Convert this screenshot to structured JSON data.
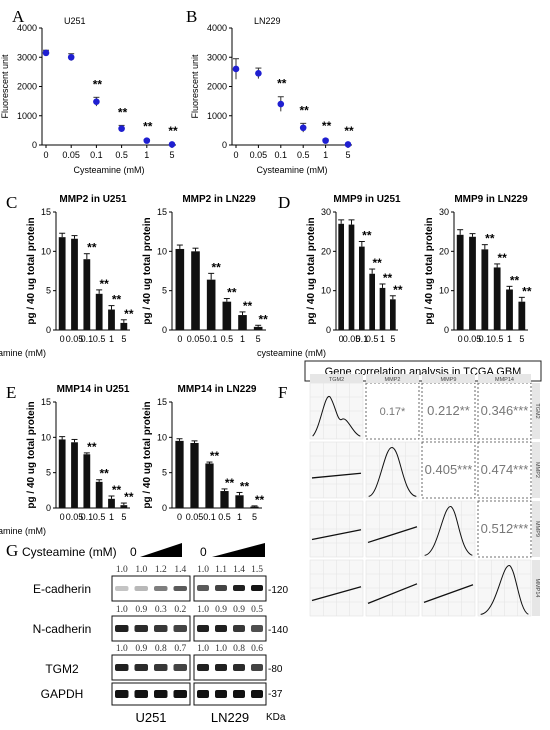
{
  "panel_labels": {
    "A": "A",
    "B": "B",
    "C": "C",
    "D": "D",
    "E": "E",
    "F": "F",
    "G": "G"
  },
  "chart_data": [
    {
      "id": "A",
      "type": "scatter",
      "title": "U251",
      "xlabel": "Cysteamine (mM)",
      "ylabel": "Fluorescent unit",
      "categories": [
        "0",
        "0.05",
        "0.1",
        "0.5",
        "1",
        "5"
      ],
      "values": [
        3150,
        3000,
        1480,
        560,
        150,
        20
      ],
      "errors": [
        90,
        120,
        150,
        110,
        40,
        20
      ],
      "sig": [
        "",
        "",
        "**",
        "**",
        "**",
        "**"
      ],
      "ylim": [
        0,
        4000
      ],
      "yticks": [
        "0",
        "1000",
        "2000",
        "3000",
        "4000"
      ]
    },
    {
      "id": "B",
      "type": "scatter",
      "title": "LN229",
      "xlabel": "Cysteamine (mM)",
      "ylabel": "Fluorescent unit",
      "categories": [
        "0",
        "0.05",
        "0.1",
        "0.5",
        "1",
        "5"
      ],
      "values": [
        2600,
        2450,
        1400,
        590,
        150,
        20
      ],
      "errors": [
        350,
        180,
        250,
        150,
        50,
        20
      ],
      "sig": [
        "",
        "",
        "**",
        "**",
        "**",
        "**"
      ],
      "ylim": [
        0,
        4000
      ],
      "yticks": [
        "0",
        "1000",
        "2000",
        "3000",
        "4000"
      ]
    },
    {
      "id": "C1",
      "type": "bar",
      "title": "MMP2 in U251",
      "ylabel": "pg / 40 ug total protein",
      "xlabel": "cysteamine (mM)",
      "categories": [
        "0",
        "0.05",
        "0.1",
        "0.5",
        "1",
        "5"
      ],
      "values": [
        11.8,
        11.6,
        9.0,
        4.6,
        2.6,
        0.9
      ],
      "errors": [
        0.5,
        0.4,
        0.7,
        0.5,
        0.5,
        0.4
      ],
      "sig": [
        "",
        "",
        "**",
        "**",
        "**",
        "**"
      ],
      "ylim": [
        0,
        15
      ],
      "yticks": [
        "0",
        "5",
        "10",
        "15"
      ]
    },
    {
      "id": "C2",
      "type": "bar",
      "title": "MMP2 in LN229",
      "ylabel": "pg / 40 ug total protein",
      "categories": [
        "0",
        "0.05",
        "0.1",
        "0.5",
        "1",
        "5"
      ],
      "values": [
        10.3,
        10.0,
        6.4,
        3.6,
        1.9,
        0.4
      ],
      "errors": [
        0.5,
        0.4,
        0.8,
        0.4,
        0.4,
        0.2
      ],
      "sig": [
        "",
        "",
        "**",
        "**",
        "**",
        "**"
      ],
      "ylim": [
        0,
        15
      ],
      "yticks": [
        "0",
        "5",
        "10",
        "15"
      ]
    },
    {
      "id": "D1",
      "type": "bar",
      "title": "MMP9 in U251",
      "ylabel": "pg / 40 ug total protein",
      "xlabel": "cysteamine (mM)",
      "categories": [
        "0",
        "0.05",
        "0.1",
        "0.5",
        "1",
        "5"
      ],
      "values": [
        27.0,
        26.8,
        21.2,
        14.3,
        10.7,
        7.8
      ],
      "errors": [
        1.0,
        1.2,
        1.3,
        1.2,
        1.0,
        0.9
      ],
      "sig": [
        "",
        "",
        "**",
        "**",
        "**",
        "**"
      ],
      "ylim": [
        0,
        30
      ],
      "yticks": [
        "0",
        "10",
        "20",
        "30"
      ]
    },
    {
      "id": "D2",
      "type": "bar",
      "title": "MMP9 in LN229",
      "ylabel": "pg / 40 ug total protein",
      "categories": [
        "0",
        "0.05",
        "0.1",
        "0.5",
        "1",
        "5"
      ],
      "values": [
        24.2,
        23.7,
        20.5,
        15.9,
        10.3,
        7.2
      ],
      "errors": [
        1.3,
        0.8,
        1.2,
        0.9,
        0.8,
        1.1
      ],
      "sig": [
        "",
        "",
        "**",
        "**",
        "**",
        "**"
      ],
      "ylim": [
        0,
        30
      ],
      "yticks": [
        "0",
        "10",
        "20",
        "30"
      ]
    },
    {
      "id": "E1",
      "type": "bar",
      "title": "MMP14 in U251",
      "ylabel": "pg / 40 ug total protein",
      "xlabel": "cysteamine (mM)",
      "categories": [
        "0",
        "0.05",
        "0.1",
        "0.5",
        "1",
        "5"
      ],
      "values": [
        9.7,
        9.3,
        7.6,
        3.7,
        1.3,
        0.4
      ],
      "errors": [
        0.4,
        0.4,
        0.2,
        0.3,
        0.4,
        0.3
      ],
      "sig": [
        "",
        "",
        "**",
        "**",
        "**",
        "**"
      ],
      "ylim": [
        0,
        15
      ],
      "yticks": [
        "0",
        "5",
        "10",
        "15"
      ]
    },
    {
      "id": "E2",
      "type": "bar",
      "title": "MMP14 in LN229",
      "ylabel": "pg / 40 ug total protein",
      "categories": [
        "0",
        "0.05",
        "0.1",
        "0.5",
        "1",
        "5"
      ],
      "values": [
        9.5,
        9.2,
        6.3,
        2.4,
        1.8,
        0.2
      ],
      "errors": [
        0.3,
        0.3,
        0.2,
        0.3,
        0.4,
        0.1
      ],
      "sig": [
        "",
        "",
        "**",
        "**",
        "**",
        "**"
      ],
      "ylim": [
        0,
        15
      ],
      "yticks": [
        "0",
        "5",
        "10",
        "15"
      ]
    },
    {
      "id": "F",
      "type": "matrix",
      "title": "Gene correlation analysis in TCGA GBM",
      "genes": [
        "TGM2",
        "MMP2",
        "MMP9",
        "MMP14"
      ],
      "correlations": [
        {
          "row": 0,
          "col": 1,
          "label": "0.17*"
        },
        {
          "row": 0,
          "col": 2,
          "label": "0.212**"
        },
        {
          "row": 0,
          "col": 3,
          "label": "0.346***"
        },
        {
          "row": 1,
          "col": 2,
          "label": "0.405***"
        },
        {
          "row": 1,
          "col": 3,
          "label": "0.474***"
        },
        {
          "row": 2,
          "col": 3,
          "label": "0.512***"
        }
      ]
    }
  ],
  "westernblot": {
    "title": "Cysteamine (mM)",
    "zero_labels": [
      "0",
      "0"
    ],
    "rows": [
      {
        "name": "E-cadherin",
        "kda": "-120",
        "nums_left": [
          "1.0",
          "1.0",
          "1.2",
          "1.4"
        ],
        "nums_right": [
          "1.0",
          "1.1",
          "1.4",
          "1.5"
        ],
        "nums_below_left": [
          "1.0",
          "0.9",
          "0.3",
          "0.2"
        ],
        "nums_below_right": [
          "1.0",
          "0.9",
          "0.9",
          "0.5"
        ]
      },
      {
        "name": "N-cadherin",
        "kda": "-140",
        "nums_left": [
          "1.0",
          "0.9",
          "0.8",
          "0.7"
        ],
        "nums_right": [
          "1.0",
          "1.0",
          "0.8",
          "0.6"
        ]
      },
      {
        "name": "TGM2",
        "kda": "-80"
      },
      {
        "name": "GAPDH",
        "kda": "-37"
      }
    ],
    "cell_lines": [
      "U251",
      "LN229"
    ],
    "unit": "KDa"
  }
}
